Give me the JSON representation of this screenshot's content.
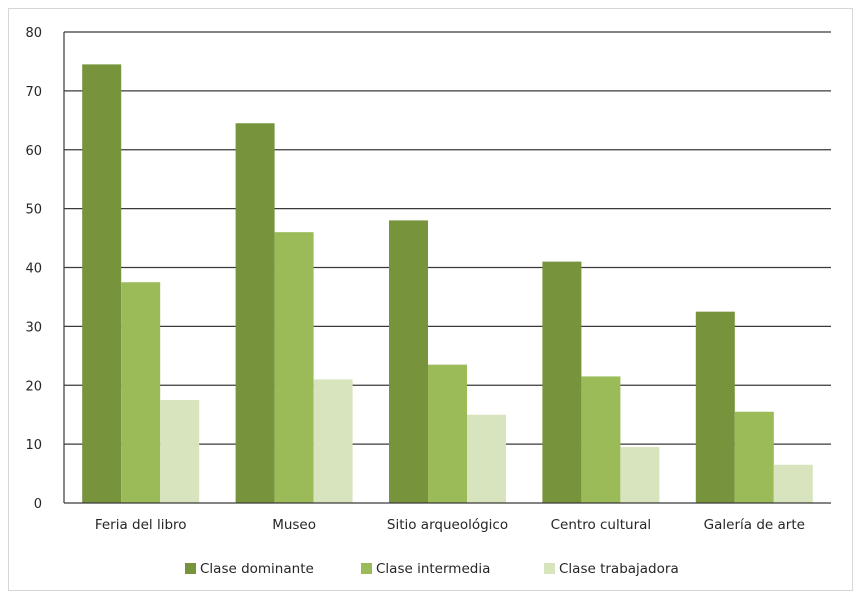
{
  "chart_data": {
    "type": "bar",
    "categories": [
      "Feria del libro",
      "Museo",
      "Sitio arqueológico",
      "Centro cultural",
      "Galería de arte"
    ],
    "series": [
      {
        "name": "Clase dominante",
        "values": [
          74.5,
          64.5,
          48,
          41,
          32.5
        ],
        "color": "#77933c"
      },
      {
        "name": "Clase intermedia",
        "values": [
          37.5,
          46,
          23.5,
          21.5,
          15.5
        ],
        "color": "#9bbb59"
      },
      {
        "name": "Clase trabajadora",
        "values": [
          17.5,
          21,
          15,
          9.5,
          6.5
        ],
        "color": "#d7e4bd"
      }
    ],
    "ylim": [
      0,
      80
    ],
    "yticks": [
      "0",
      "10",
      "20",
      "30",
      "40",
      "50",
      "60",
      "70",
      "80"
    ],
    "grid": true,
    "legend_position": "bottom"
  }
}
